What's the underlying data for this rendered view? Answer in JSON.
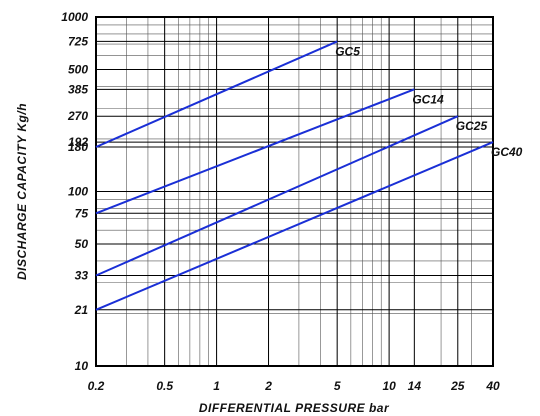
{
  "chart_data": {
    "type": "line",
    "xlabel": "DIFFERENTIAL PRESSURE   bar",
    "ylabel": "DISCHARGE CAPACITY   Kg/h",
    "x_scale": "log",
    "y_scale": "log",
    "xlim": [
      0.2,
      40
    ],
    "ylim": [
      10,
      1000
    ],
    "grid": true,
    "x_ticks": [
      0.2,
      0.5,
      1,
      2,
      5,
      10,
      14,
      25,
      40
    ],
    "x_tick_labels": [
      "0.2",
      "0.5",
      "1",
      "2",
      "5",
      "10",
      "14",
      "25",
      "40"
    ],
    "y_ticks": [
      10,
      21,
      33,
      50,
      75,
      100,
      180,
      192,
      270,
      385,
      500,
      725,
      1000
    ],
    "y_tick_labels": [
      "10",
      "21",
      "33",
      "50",
      "75",
      "100",
      "180",
      "192",
      "270",
      "385",
      "500",
      "725",
      "1000"
    ],
    "series": [
      {
        "name": "GC5",
        "x": [
          0.2,
          5
        ],
        "y": [
          180,
          725
        ]
      },
      {
        "name": "GC14",
        "x": [
          0.2,
          14
        ],
        "y": [
          75,
          385
        ]
      },
      {
        "name": "GC25",
        "x": [
          0.2,
          25
        ],
        "y": [
          33,
          270
        ]
      },
      {
        "name": "GC40",
        "x": [
          0.2,
          40
        ],
        "y": [
          21,
          192
        ]
      }
    ],
    "line_color": "#1a2fd6"
  }
}
